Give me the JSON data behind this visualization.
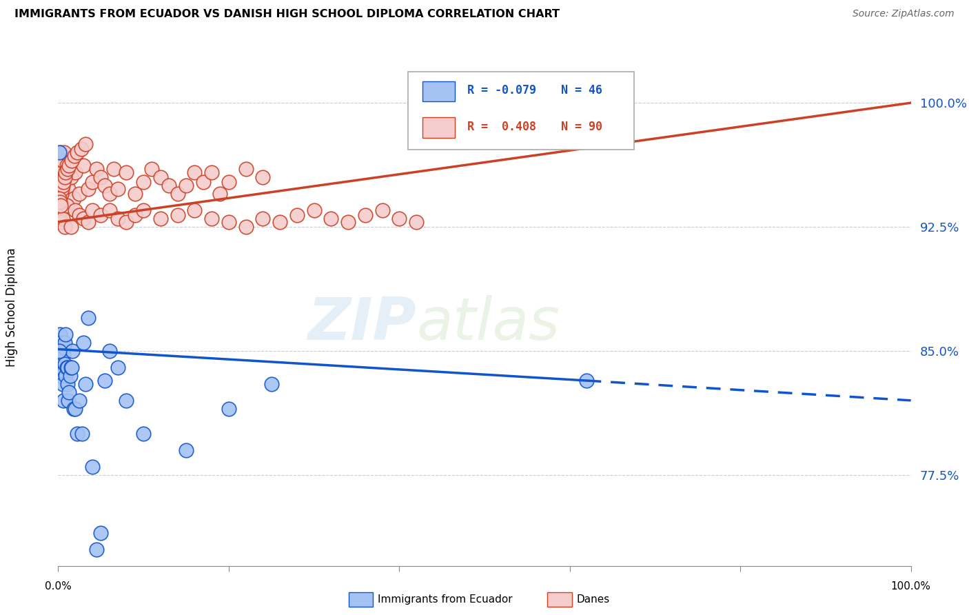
{
  "title": "IMMIGRANTS FROM ECUADOR VS DANISH HIGH SCHOOL DIPLOMA CORRELATION CHART",
  "source": "Source: ZipAtlas.com",
  "ylabel": "High School Diploma",
  "ytick_labels": [
    "77.5%",
    "85.0%",
    "92.5%",
    "100.0%"
  ],
  "ytick_values": [
    77.5,
    85.0,
    92.5,
    100.0
  ],
  "watermark_zip": "ZIP",
  "watermark_atlas": "atlas",
  "blue_color": "#a4c2f4",
  "pink_color": "#f4cccc",
  "blue_line_color": "#1155cc",
  "pink_line_color": "#cc4125",
  "background_color": "#ffffff",
  "grid_color": "#cccccc",
  "xlim": [
    0.0,
    100.0
  ],
  "ylim": [
    72.0,
    102.5
  ],
  "blue_r": "-0.079",
  "blue_n": "46",
  "pink_r": "0.408",
  "pink_n": "90",
  "blue_scatter_x": [
    0.1,
    0.2,
    0.2,
    0.3,
    0.3,
    0.4,
    0.5,
    0.5,
    0.6,
    0.6,
    0.7,
    0.7,
    0.8,
    0.8,
    0.9,
    0.9,
    1.0,
    1.1,
    1.1,
    1.2,
    1.3,
    1.4,
    1.5,
    1.6,
    1.7,
    1.8,
    2.0,
    2.2,
    2.5,
    2.8,
    3.0,
    3.2,
    3.5,
    4.0,
    4.5,
    5.0,
    5.5,
    6.0,
    7.0,
    8.0,
    10.0,
    15.0,
    20.0,
    25.0,
    62.0,
    0.15
  ],
  "blue_scatter_y": [
    97.0,
    84.5,
    86.0,
    85.5,
    83.5,
    85.0,
    84.0,
    83.0,
    82.0,
    84.8,
    85.2,
    83.8,
    84.2,
    85.5,
    83.5,
    86.0,
    84.0,
    83.0,
    84.0,
    82.0,
    82.5,
    83.5,
    84.0,
    84.0,
    85.0,
    81.5,
    81.5,
    80.0,
    82.0,
    80.0,
    85.5,
    83.0,
    87.0,
    78.0,
    73.0,
    74.0,
    83.2,
    85.0,
    84.0,
    82.0,
    80.0,
    79.0,
    81.5,
    83.0,
    83.2,
    85.0
  ],
  "pink_scatter_x": [
    0.1,
    0.15,
    0.2,
    0.25,
    0.3,
    0.4,
    0.5,
    0.6,
    0.7,
    0.8,
    1.0,
    1.2,
    1.5,
    1.8,
    2.0,
    2.5,
    3.0,
    3.5,
    4.0,
    4.5,
    5.0,
    5.5,
    6.0,
    6.5,
    7.0,
    8.0,
    9.0,
    10.0,
    11.0,
    12.0,
    13.0,
    14.0,
    15.0,
    16.0,
    17.0,
    18.0,
    19.0,
    20.0,
    22.0,
    24.0,
    0.1,
    0.2,
    0.3,
    0.5,
    0.8,
    1.0,
    1.5,
    2.0,
    2.5,
    3.0,
    3.5,
    4.0,
    5.0,
    6.0,
    7.0,
    8.0,
    9.0,
    10.0,
    12.0,
    14.0,
    16.0,
    18.0,
    20.0,
    22.0,
    24.0,
    26.0,
    28.0,
    30.0,
    32.0,
    34.0,
    36.0,
    38.0,
    40.0,
    42.0,
    0.35,
    0.45,
    0.55,
    0.65,
    0.75,
    0.85,
    1.1,
    1.3,
    1.6,
    1.9,
    2.2,
    2.7,
    3.2,
    0.12,
    0.18,
    0.28
  ],
  "pink_scatter_y": [
    96.0,
    94.0,
    96.5,
    95.0,
    97.0,
    95.8,
    96.5,
    95.5,
    97.0,
    95.5,
    96.2,
    94.8,
    95.5,
    94.2,
    95.8,
    94.5,
    96.2,
    94.8,
    95.2,
    96.0,
    95.5,
    95.0,
    94.5,
    96.0,
    94.8,
    95.8,
    94.5,
    95.2,
    96.0,
    95.5,
    95.0,
    94.5,
    95.0,
    95.8,
    95.2,
    95.8,
    94.5,
    95.2,
    96.0,
    95.5,
    93.2,
    93.5,
    92.8,
    93.0,
    92.5,
    93.8,
    92.5,
    93.5,
    93.2,
    93.0,
    92.8,
    93.5,
    93.2,
    93.5,
    93.0,
    92.8,
    93.2,
    93.5,
    93.0,
    93.2,
    93.5,
    93.0,
    92.8,
    92.5,
    93.0,
    92.8,
    93.2,
    93.5,
    93.0,
    92.8,
    93.2,
    93.5,
    93.0,
    92.8,
    94.5,
    94.8,
    95.0,
    95.2,
    95.5,
    95.8,
    96.0,
    96.2,
    96.5,
    96.8,
    97.0,
    97.2,
    97.5,
    94.2,
    94.0,
    93.8
  ],
  "blue_line_start_x": 0.0,
  "blue_line_start_y": 85.1,
  "blue_line_solid_end_x": 62.0,
  "blue_line_solid_end_y": 83.2,
  "blue_line_dash_end_x": 100.0,
  "blue_line_dash_end_y": 82.0,
  "pink_line_start_x": 0.0,
  "pink_line_start_y": 92.8,
  "pink_line_end_x": 100.0,
  "pink_line_end_y": 100.0
}
